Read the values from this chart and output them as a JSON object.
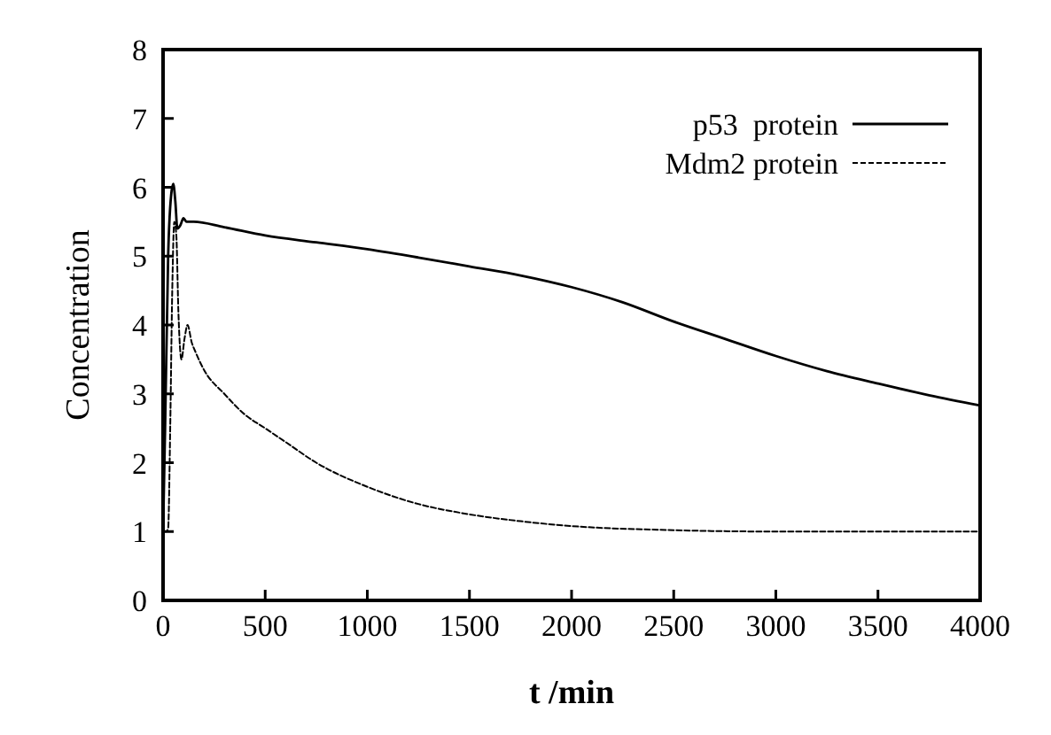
{
  "chart_data": {
    "type": "line",
    "xlabel": "t /min",
    "ylabel": "Concentration",
    "xlim": [
      0,
      4000
    ],
    "ylim": [
      0,
      8
    ],
    "xticks": [
      0,
      500,
      1000,
      1500,
      2000,
      2500,
      3000,
      3500,
      4000
    ],
    "yticks": [
      0,
      1,
      2,
      3,
      4,
      5,
      6,
      7,
      8
    ],
    "grid": false,
    "legend": "top right",
    "series": [
      {
        "name": "p53  protein",
        "color": "#000000",
        "line_style": "solid",
        "x": [
          0,
          10,
          25,
          40,
          50,
          60,
          70,
          85,
          100,
          115,
          150,
          300,
          500,
          750,
          1000,
          1250,
          1500,
          1750,
          2000,
          2250,
          2500,
          2750,
          3000,
          3250,
          3500,
          3750,
          4000
        ],
        "values": [
          1.0,
          2.5,
          5.0,
          5.9,
          6.05,
          5.8,
          5.4,
          5.45,
          5.55,
          5.5,
          5.5,
          5.42,
          5.3,
          5.2,
          5.1,
          4.98,
          4.85,
          4.72,
          4.55,
          4.33,
          4.05,
          3.8,
          3.55,
          3.33,
          3.15,
          2.98,
          2.83
        ]
      },
      {
        "name": "Mdm2 protein",
        "color": "#000000",
        "line_style": "dashed",
        "x": [
          0,
          15,
          25,
          35,
          45,
          55,
          65,
          75,
          90,
          105,
          120,
          140,
          160,
          200,
          300,
          400,
          500,
          600,
          750,
          1000,
          1250,
          1500,
          1750,
          2000,
          2500,
          3000,
          3500,
          4000
        ],
        "values": [
          1.0,
          1.0,
          1.05,
          2.5,
          4.5,
          5.5,
          5.3,
          4.2,
          3.5,
          3.8,
          4.0,
          3.75,
          3.6,
          3.35,
          3.0,
          2.7,
          2.5,
          2.3,
          2.0,
          1.65,
          1.4,
          1.25,
          1.15,
          1.08,
          1.02,
          1.0,
          1.0,
          1.0
        ]
      }
    ]
  }
}
